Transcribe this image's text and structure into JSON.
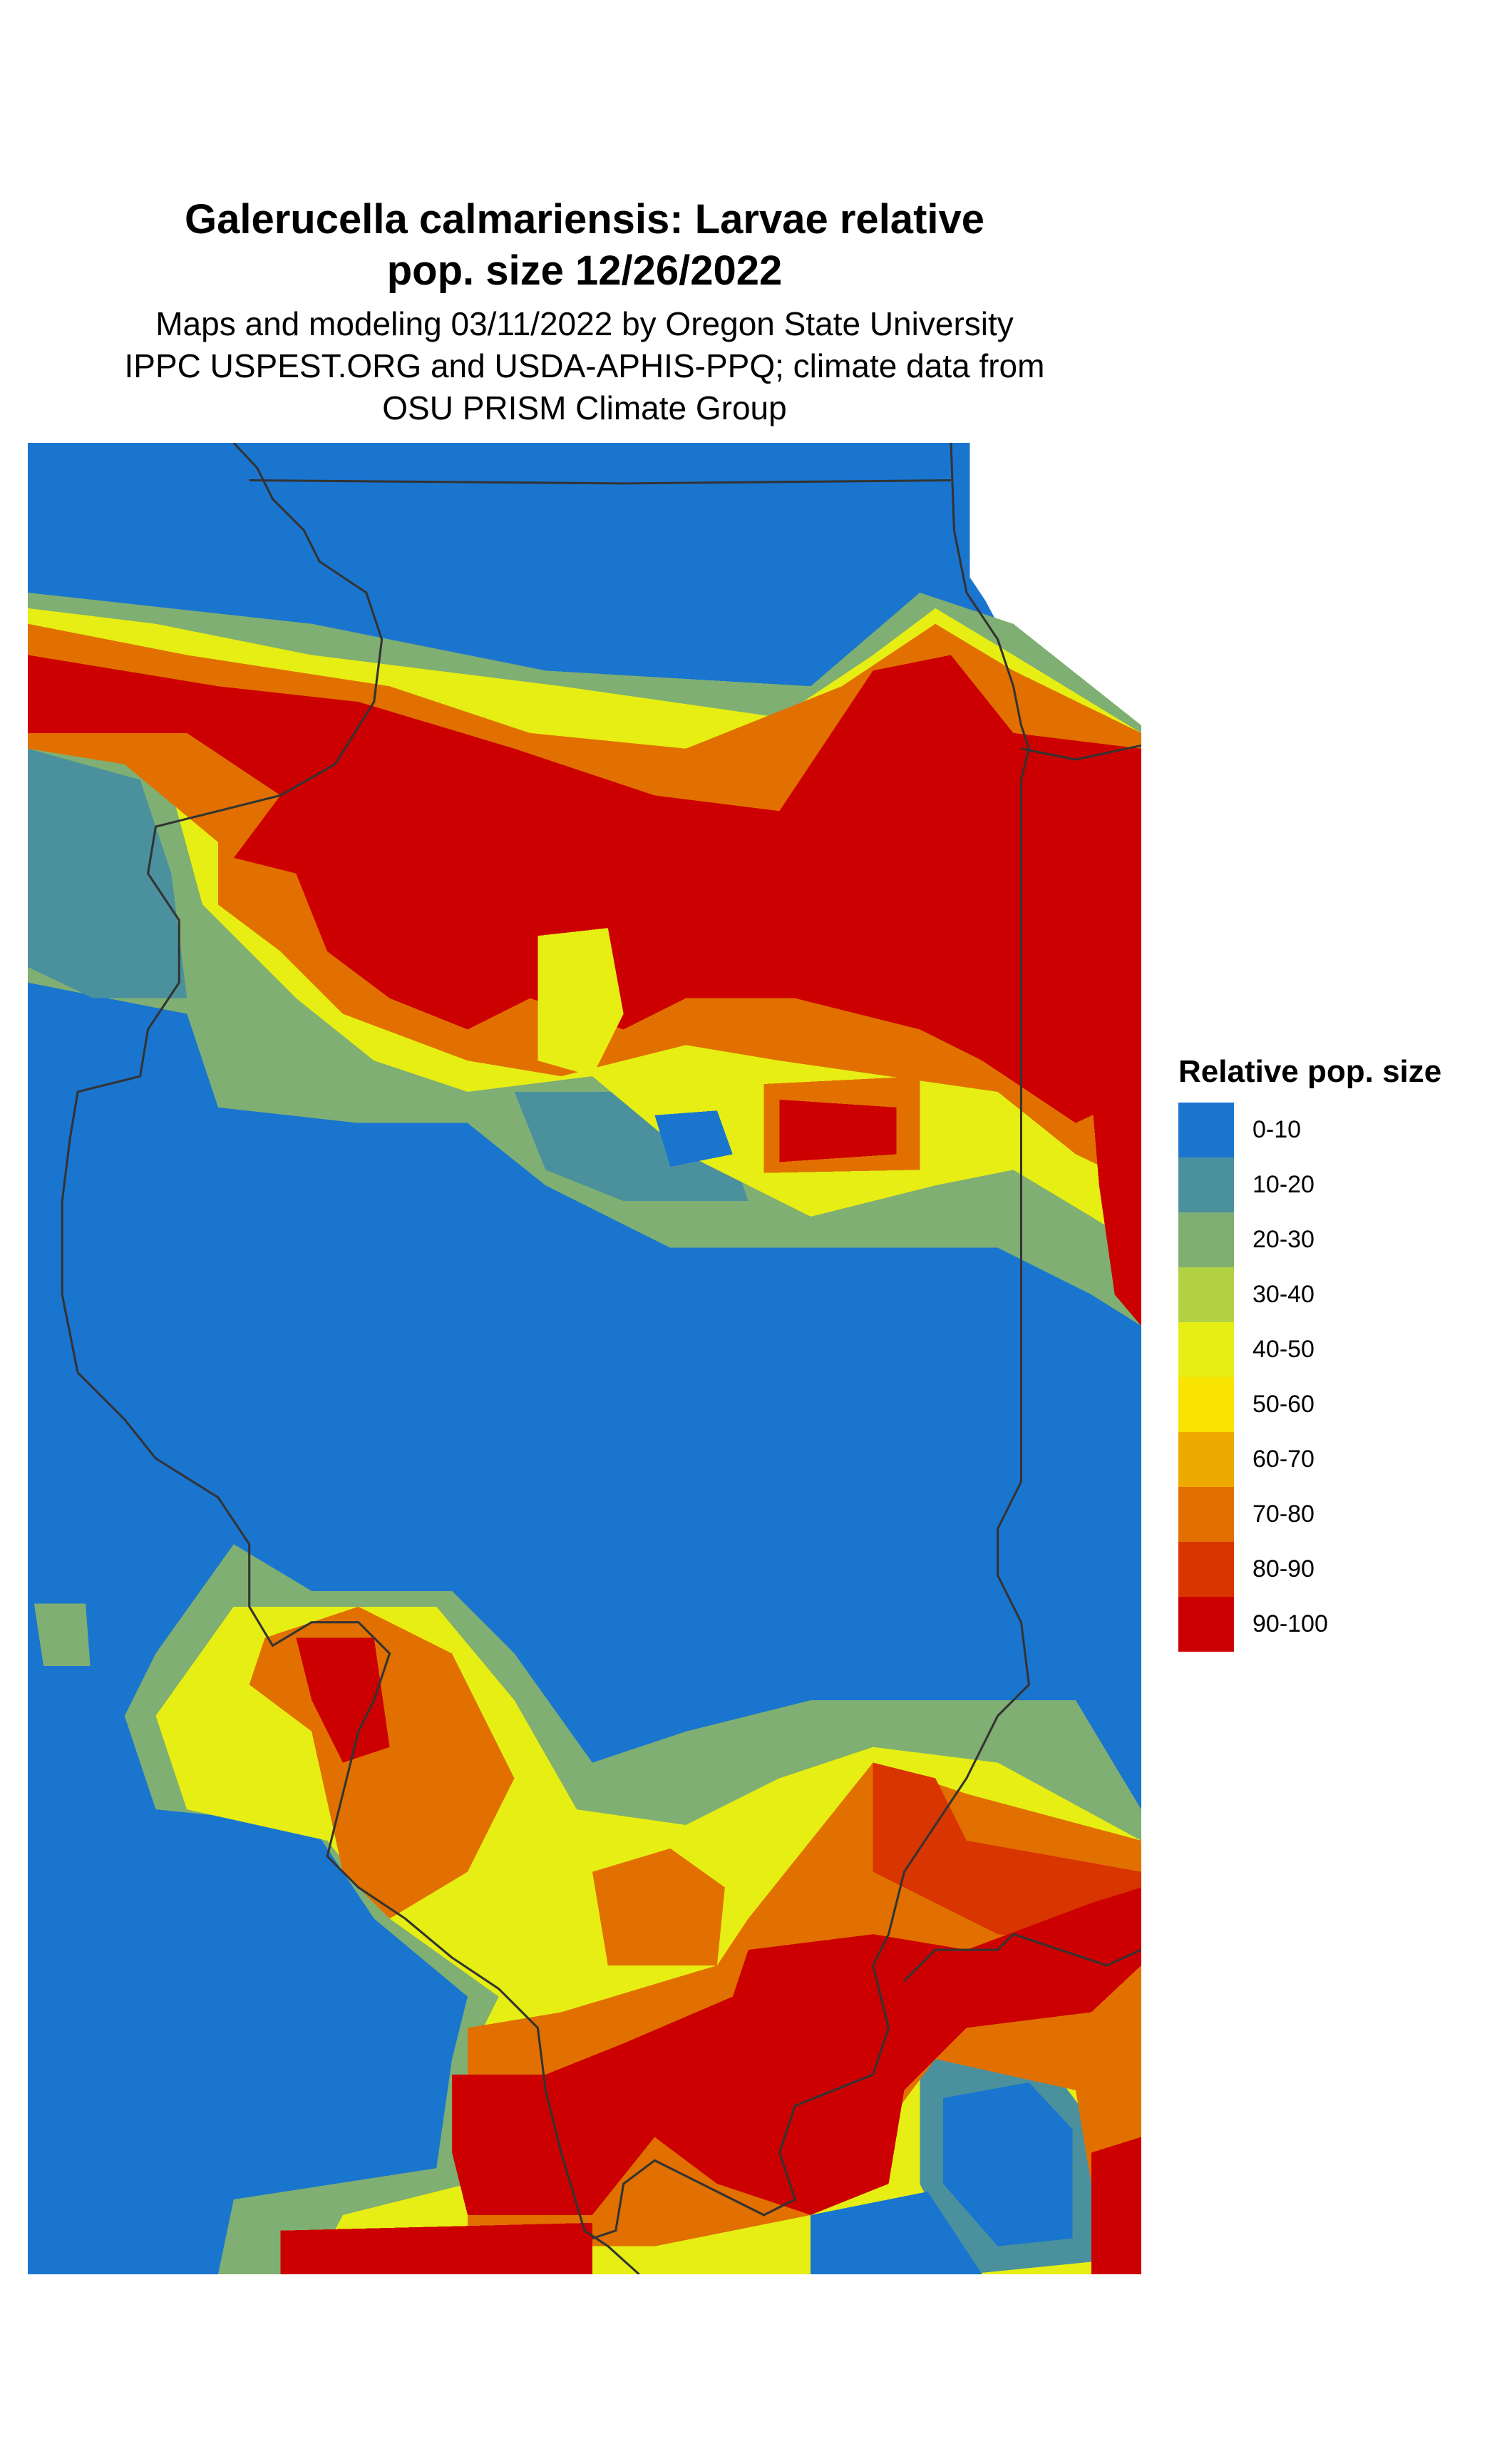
{
  "title": {
    "line1": "Galerucella calmariensis: Larvae relative",
    "line2": "pop. size 12/26/2022"
  },
  "subtitle": {
    "line1": "Maps and modeling 03/11/2022 by Oregon State University",
    "line2": "IPPC USPEST.ORG and USDA-APHIS-PPQ; climate data from",
    "line3": "OSU PRISM Climate Group"
  },
  "legend": {
    "title": "Relative pop. size",
    "items": [
      {
        "label": "0-10",
        "color": "#1a75cf"
      },
      {
        "label": "10-20",
        "color": "#4a919d"
      },
      {
        "label": "20-30",
        "color": "#7faf72"
      },
      {
        "label": "30-40",
        "color": "#b2d143"
      },
      {
        "label": "40-50",
        "color": "#e6ee13"
      },
      {
        "label": "50-60",
        "color": "#f9e300"
      },
      {
        "label": "60-70",
        "color": "#eeaa00"
      },
      {
        "label": "70-80",
        "color": "#e17000"
      },
      {
        "label": "80-90",
        "color": "#d83500"
      },
      {
        "label": "90-100",
        "color": "#cc0000"
      }
    ]
  },
  "map": {
    "boundary_color": "#333333"
  }
}
